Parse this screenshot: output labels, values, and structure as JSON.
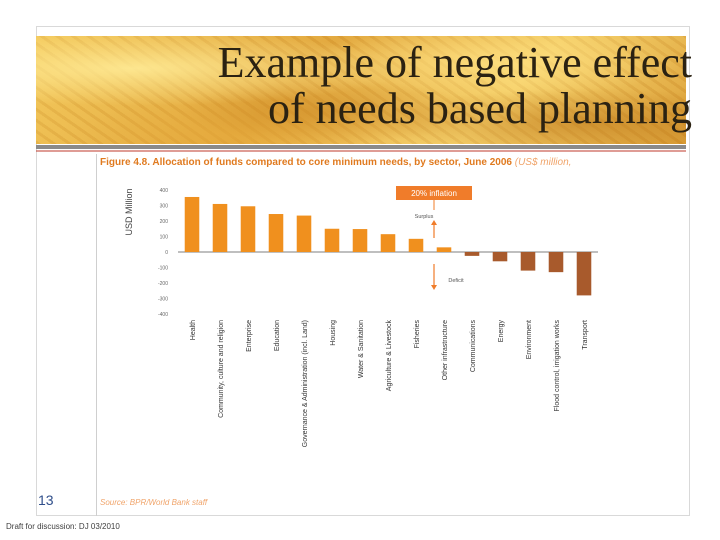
{
  "slide": {
    "title_line1": "Example of negative effect",
    "title_line2": "of needs based planning",
    "slide_number": "13",
    "footer": "Draft for discussion: DJ 03/2010"
  },
  "figure": {
    "caption": "Figure 4.8. Allocation of funds compared to core minimum needs, by sector, June 2006",
    "caption_unit": "(US$ million,",
    "source": "Source: BPR/World Bank staff"
  },
  "chart_data": {
    "type": "bar",
    "title": "Allocation of funds compared to core minimum needs, by sector, June 2006",
    "ylabel": "USD Million",
    "xlabel": "",
    "ylim": [
      -400,
      400
    ],
    "yticks": [
      400,
      300,
      200,
      100,
      0,
      -100,
      -200,
      -300,
      -400
    ],
    "ytick_labels": [
      "400",
      "300",
      "200",
      "100",
      "0",
      "-100",
      "-200",
      "-300",
      "-400"
    ],
    "categories": [
      "Health",
      "Community, culture and religion",
      "Enterprise",
      "Education",
      "Governance & Administration (incl. Land)",
      "Housing",
      "Water & Sanitation",
      "Agriculture & Livestock",
      "Fisheries",
      "Other infrastructure",
      "Communications",
      "Energy",
      "Environment",
      "Flood control, irrigation works",
      "Transport"
    ],
    "values": [
      355,
      310,
      295,
      245,
      235,
      150,
      148,
      115,
      85,
      30,
      -25,
      -60,
      -120,
      -130,
      -280
    ],
    "colors": {
      "positive": "#f0901e",
      "negative": "#a85a2c",
      "annotation": "#f07c2a"
    },
    "annotations": {
      "inflation_box": "20% inflation",
      "surplus": "Surplus",
      "deficit": "Deficit"
    },
    "legend": "none",
    "grid": false
  }
}
